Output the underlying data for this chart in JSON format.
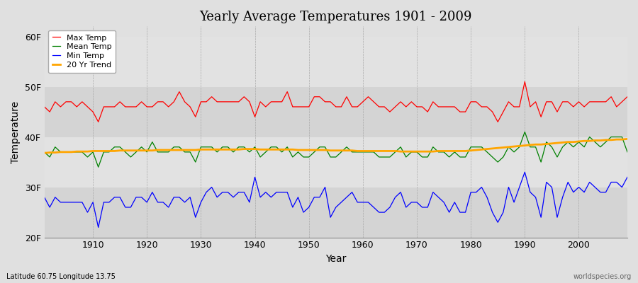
{
  "title": "Yearly Average Temperatures 1901 - 2009",
  "xlabel": "Year",
  "ylabel": "Temperature",
  "xlim": [
    1901,
    2009
  ],
  "ylim": [
    20,
    62
  ],
  "yticks": [
    20,
    30,
    40,
    50,
    60
  ],
  "ytick_labels": [
    "20F",
    "30F",
    "40F",
    "50F",
    "60F"
  ],
  "xticks": [
    1910,
    1920,
    1930,
    1940,
    1950,
    1960,
    1970,
    1980,
    1990,
    2000
  ],
  "background_color": "#e0e0e0",
  "plot_bg_color": "#e0e0e0",
  "grid_color": "#ffffff",
  "legend": [
    "Max Temp",
    "Mean Temp",
    "Min Temp",
    "20 Yr Trend"
  ],
  "legend_colors": [
    "red",
    "green",
    "blue",
    "orange"
  ],
  "subtitle_left": "Latitude 60.75 Longitude 13.75",
  "subtitle_right": "worldspecies.org",
  "band_edges": [
    20,
    30,
    40,
    50,
    60
  ],
  "band_colors": [
    "#d8d8d8",
    "#e4e4e4"
  ],
  "years": [
    1901,
    1902,
    1903,
    1904,
    1905,
    1906,
    1907,
    1908,
    1909,
    1910,
    1911,
    1912,
    1913,
    1914,
    1915,
    1916,
    1917,
    1918,
    1919,
    1920,
    1921,
    1922,
    1923,
    1924,
    1925,
    1926,
    1927,
    1928,
    1929,
    1930,
    1931,
    1932,
    1933,
    1934,
    1935,
    1936,
    1937,
    1938,
    1939,
    1940,
    1941,
    1942,
    1943,
    1944,
    1945,
    1946,
    1947,
    1948,
    1949,
    1950,
    1951,
    1952,
    1953,
    1954,
    1955,
    1956,
    1957,
    1958,
    1959,
    1960,
    1961,
    1962,
    1963,
    1964,
    1965,
    1966,
    1967,
    1968,
    1969,
    1970,
    1971,
    1972,
    1973,
    1974,
    1975,
    1976,
    1977,
    1978,
    1979,
    1980,
    1981,
    1982,
    1983,
    1984,
    1985,
    1986,
    1987,
    1988,
    1989,
    1990,
    1991,
    1992,
    1993,
    1994,
    1995,
    1996,
    1997,
    1998,
    1999,
    2000,
    2001,
    2002,
    2003,
    2004,
    2005,
    2006,
    2007,
    2008,
    2009
  ],
  "max_temp": [
    46,
    45,
    47,
    46,
    47,
    47,
    46,
    47,
    46,
    45,
    43,
    46,
    46,
    46,
    47,
    46,
    46,
    46,
    47,
    46,
    46,
    47,
    47,
    46,
    47,
    49,
    47,
    46,
    44,
    47,
    47,
    48,
    47,
    47,
    47,
    47,
    47,
    48,
    47,
    44,
    47,
    46,
    47,
    47,
    47,
    49,
    46,
    46,
    46,
    46,
    48,
    48,
    47,
    47,
    46,
    46,
    48,
    46,
    46,
    47,
    48,
    47,
    46,
    46,
    45,
    46,
    47,
    46,
    47,
    46,
    46,
    45,
    47,
    46,
    46,
    46,
    46,
    45,
    45,
    47,
    47,
    46,
    46,
    45,
    43,
    45,
    47,
    46,
    46,
    51,
    46,
    47,
    44,
    47,
    47,
    45,
    47,
    47,
    46,
    47,
    46,
    47,
    47,
    47,
    47,
    48,
    46,
    47,
    48
  ],
  "mean_temp": [
    37,
    36,
    38,
    37,
    37,
    37,
    37,
    37,
    36,
    37,
    34,
    37,
    37,
    38,
    38,
    37,
    36,
    37,
    38,
    37,
    39,
    37,
    37,
    37,
    38,
    38,
    37,
    37,
    35,
    38,
    38,
    38,
    37,
    38,
    38,
    37,
    38,
    38,
    37,
    38,
    36,
    37,
    38,
    38,
    37,
    38,
    36,
    37,
    36,
    36,
    37,
    38,
    38,
    36,
    36,
    37,
    38,
    37,
    37,
    37,
    37,
    37,
    36,
    36,
    36,
    37,
    38,
    36,
    37,
    37,
    36,
    36,
    38,
    37,
    37,
    36,
    37,
    36,
    36,
    38,
    38,
    38,
    37,
    36,
    35,
    36,
    38,
    37,
    38,
    41,
    38,
    38,
    35,
    39,
    38,
    36,
    38,
    39,
    38,
    39,
    38,
    40,
    39,
    38,
    39,
    40,
    40,
    40,
    37
  ],
  "min_temp": [
    28,
    26,
    28,
    27,
    27,
    27,
    27,
    27,
    25,
    27,
    22,
    27,
    27,
    28,
    28,
    26,
    26,
    28,
    28,
    27,
    29,
    27,
    27,
    26,
    28,
    28,
    27,
    28,
    24,
    27,
    29,
    30,
    28,
    29,
    29,
    28,
    29,
    29,
    27,
    32,
    28,
    29,
    28,
    29,
    29,
    29,
    26,
    28,
    25,
    26,
    28,
    28,
    30,
    24,
    26,
    27,
    28,
    29,
    27,
    27,
    27,
    26,
    25,
    25,
    26,
    28,
    29,
    26,
    27,
    27,
    26,
    26,
    29,
    28,
    27,
    25,
    27,
    25,
    25,
    29,
    29,
    30,
    28,
    25,
    23,
    25,
    30,
    27,
    30,
    33,
    29,
    28,
    24,
    31,
    30,
    24,
    28,
    31,
    29,
    30,
    29,
    31,
    30,
    29,
    29,
    31,
    31,
    30,
    32
  ],
  "trend": [
    36.8,
    36.9,
    36.9,
    37.0,
    37.0,
    37.0,
    37.1,
    37.1,
    37.1,
    37.2,
    37.2,
    37.2,
    37.2,
    37.2,
    37.3,
    37.3,
    37.3,
    37.3,
    37.3,
    37.3,
    37.3,
    37.4,
    37.4,
    37.4,
    37.4,
    37.4,
    37.4,
    37.4,
    37.4,
    37.5,
    37.5,
    37.5,
    37.5,
    37.5,
    37.5,
    37.5,
    37.5,
    37.6,
    37.6,
    37.6,
    37.5,
    37.5,
    37.5,
    37.5,
    37.5,
    37.5,
    37.5,
    37.4,
    37.4,
    37.4,
    37.4,
    37.4,
    37.4,
    37.3,
    37.3,
    37.3,
    37.3,
    37.3,
    37.2,
    37.2,
    37.2,
    37.2,
    37.2,
    37.2,
    37.2,
    37.2,
    37.1,
    37.1,
    37.1,
    37.1,
    37.1,
    37.1,
    37.1,
    37.2,
    37.2,
    37.2,
    37.2,
    37.2,
    37.2,
    37.3,
    37.4,
    37.5,
    37.6,
    37.7,
    37.8,
    37.9,
    38.0,
    38.1,
    38.2,
    38.3,
    38.4,
    38.5,
    38.5,
    38.6,
    38.7,
    38.8,
    38.9,
    39.0,
    39.0,
    39.1,
    39.2,
    39.2,
    39.3,
    39.3,
    39.4,
    39.4,
    39.5,
    39.5,
    39.6
  ]
}
